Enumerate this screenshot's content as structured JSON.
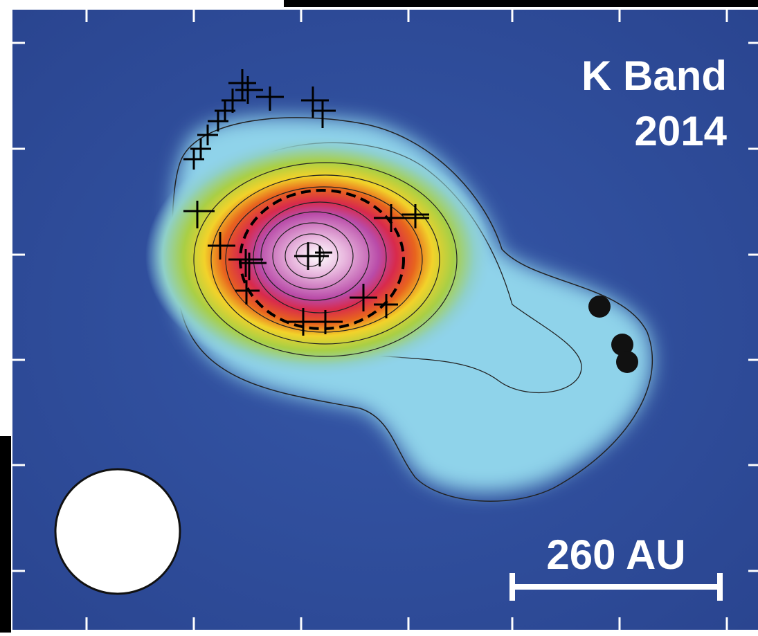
{
  "panel": {
    "title": "K Band",
    "year": "2014",
    "scale_label": "260 AU"
  }
}
